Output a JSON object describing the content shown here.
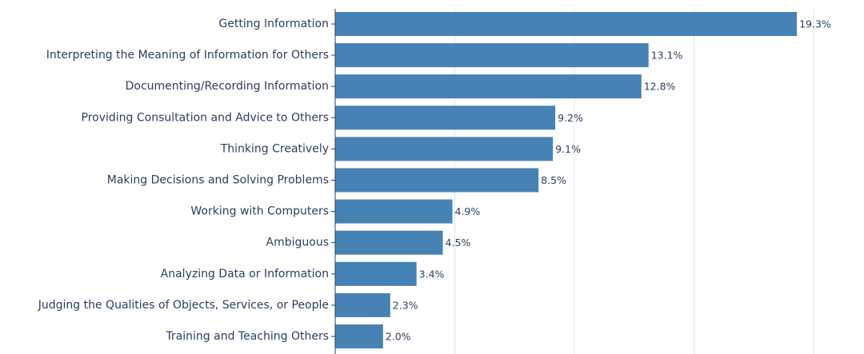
{
  "chart_data": {
    "type": "bar",
    "orientation": "horizontal",
    "categories": [
      "Getting Information",
      "Interpreting the Meaning of Information for Others",
      "Documenting/Recording Information",
      "Providing Consultation and Advice to Others",
      "Thinking Creatively",
      "Making Decisions and Solving Problems",
      "Working with Computers",
      "Ambiguous",
      "Analyzing Data or Information",
      "Judging the Qualities of Objects, Services, or People",
      "Training and Teaching Others"
    ],
    "values": [
      19.3,
      13.1,
      12.8,
      9.2,
      9.1,
      8.5,
      4.9,
      4.5,
      3.4,
      2.3,
      2.0
    ],
    "value_labels": [
      "19.3%",
      "13.1%",
      "12.8%",
      "9.2%",
      "9.1%",
      "8.5%",
      "4.9%",
      "4.5%",
      "3.4%",
      "2.3%",
      "2.0%"
    ],
    "xlim": [
      0,
      20
    ],
    "x_gridlines": [
      5,
      10,
      15,
      20
    ],
    "grid": true,
    "bar_color": "#4682b4",
    "title": "",
    "xlabel": "",
    "ylabel": ""
  }
}
